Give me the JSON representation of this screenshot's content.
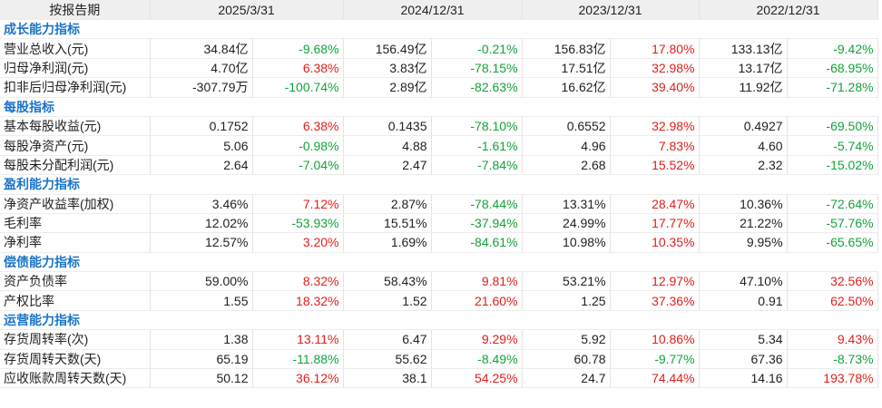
{
  "header": {
    "label": "按报告期",
    "periods": [
      "2025/3/31",
      "2024/12/31",
      "2023/12/31",
      "2022/12/31"
    ]
  },
  "sections": [
    {
      "title": "成长能力指标",
      "rows": [
        {
          "label": "营业总收入(元)",
          "cells": [
            "34.84亿",
            "-9.68%",
            "156.49亿",
            "-0.21%",
            "156.83亿",
            "17.80%",
            "133.13亿",
            "-9.42%"
          ]
        },
        {
          "label": "归母净利润(元)",
          "cells": [
            "4.70亿",
            "6.38%",
            "3.83亿",
            "-78.15%",
            "17.51亿",
            "32.98%",
            "13.17亿",
            "-68.95%"
          ]
        },
        {
          "label": "扣非后归母净利润(元)",
          "cells": [
            "-307.79万",
            "-100.74%",
            "2.89亿",
            "-82.63%",
            "16.62亿",
            "39.40%",
            "11.92亿",
            "-71.28%"
          ]
        }
      ]
    },
    {
      "title": "每股指标",
      "rows": [
        {
          "label": "基本每股收益(元)",
          "cells": [
            "0.1752",
            "6.38%",
            "0.1435",
            "-78.10%",
            "0.6552",
            "32.98%",
            "0.4927",
            "-69.50%"
          ]
        },
        {
          "label": "每股净资产(元)",
          "cells": [
            "5.06",
            "-0.98%",
            "4.88",
            "-1.61%",
            "4.96",
            "7.83%",
            "4.60",
            "-5.74%"
          ]
        },
        {
          "label": "每股未分配利润(元)",
          "cells": [
            "2.64",
            "-7.04%",
            "2.47",
            "-7.84%",
            "2.68",
            "15.52%",
            "2.32",
            "-15.02%"
          ]
        }
      ]
    },
    {
      "title": "盈利能力指标",
      "rows": [
        {
          "label": "净资产收益率(加权)",
          "cells": [
            "3.46%",
            "7.12%",
            "2.87%",
            "-78.44%",
            "13.31%",
            "28.47%",
            "10.36%",
            "-72.64%"
          ]
        },
        {
          "label": "毛利率",
          "cells": [
            "12.02%",
            "-53.93%",
            "15.51%",
            "-37.94%",
            "24.99%",
            "17.77%",
            "21.22%",
            "-57.76%"
          ]
        },
        {
          "label": "净利率",
          "cells": [
            "12.57%",
            "3.20%",
            "1.69%",
            "-84.61%",
            "10.98%",
            "10.35%",
            "9.95%",
            "-65.65%"
          ]
        }
      ]
    },
    {
      "title": "偿债能力指标",
      "rows": [
        {
          "label": "资产负债率",
          "cells": [
            "59.00%",
            "8.32%",
            "58.43%",
            "9.81%",
            "53.21%",
            "12.97%",
            "47.10%",
            "32.56%"
          ]
        },
        {
          "label": "产权比率",
          "cells": [
            "1.55",
            "18.32%",
            "1.52",
            "21.60%",
            "1.25",
            "37.36%",
            "0.91",
            "62.50%"
          ]
        }
      ]
    },
    {
      "title": "运营能力指标",
      "rows": [
        {
          "label": "存货周转率(次)",
          "cells": [
            "1.38",
            "13.11%",
            "6.47",
            "9.29%",
            "5.92",
            "10.86%",
            "5.34",
            "9.43%"
          ]
        },
        {
          "label": "存货周转天数(天)",
          "cells": [
            "65.19",
            "-11.88%",
            "55.62",
            "-8.49%",
            "60.78",
            "-9.77%",
            "67.36",
            "-8.73%"
          ]
        },
        {
          "label": "应收账款周转天数(天)",
          "cells": [
            "50.12",
            "36.12%",
            "38.1",
            "54.25%",
            "24.7",
            "74.44%",
            "14.16",
            "193.78%"
          ]
        }
      ]
    }
  ]
}
